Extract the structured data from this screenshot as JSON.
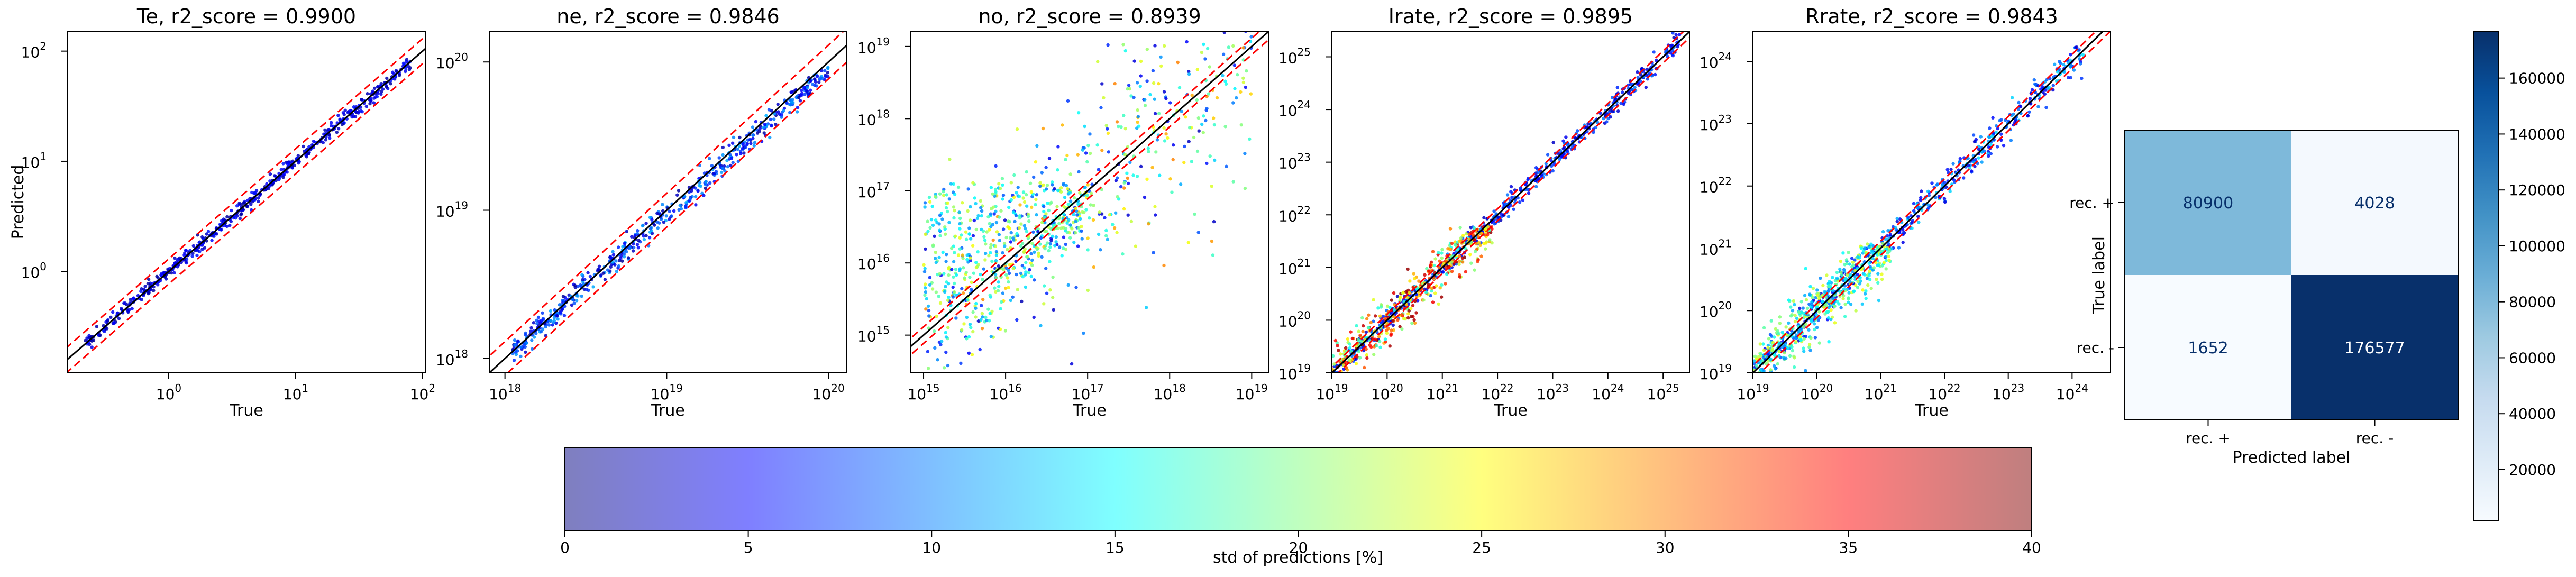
{
  "chart_data": [
    {
      "type": "scatter",
      "title": "Te, r2_score = 0.9900",
      "xlabel": "True",
      "ylabel": "Predicted",
      "log_x": true,
      "log_y": true,
      "xlim": [
        0.16,
        105
      ],
      "ylim": [
        0.12,
        150
      ],
      "xticks": [
        {
          "v": 1,
          "e": "0"
        },
        {
          "v": 10,
          "e": "1"
        },
        {
          "v": 100,
          "e": "2"
        }
      ],
      "yticks": [
        {
          "v": 1,
          "e": "0"
        },
        {
          "v": 10,
          "e": "1"
        },
        {
          "v": 100,
          "e": "2"
        }
      ],
      "identity_line": "y = x (black)",
      "bounds_lines": "red dashed",
      "bound_factor": 1.3,
      "scatter_trend": {
        "x": [
          0.22,
          80
        ],
        "y": [
          0.22,
          80
        ],
        "spread": 0.03,
        "std_range": [
          1,
          6
        ]
      }
    },
    {
      "type": "scatter",
      "title": "ne, r2_score = 0.9846",
      "xlabel": "True",
      "ylabel": "",
      "log_x": true,
      "log_y": true,
      "xlim": [
        8e+17,
        1.3e+20
      ],
      "ylim": [
        8e+17,
        1.6e+20
      ],
      "xticks": [
        {
          "v": 1e+18,
          "e": "18"
        },
        {
          "v": 1e+19,
          "e": "19"
        },
        {
          "v": 1e+20,
          "e": "20"
        }
      ],
      "yticks": [
        {
          "v": 1e+18,
          "e": "18"
        },
        {
          "v": 1e+19,
          "e": "19"
        },
        {
          "v": 1e+20,
          "e": "20"
        }
      ],
      "identity_line": "y = x (black)",
      "bounds_lines": "red dashed",
      "bound_factor": 1.3,
      "scatter_trend": {
        "x": [
          1.1e+18,
          1e+20
        ],
        "y": [
          1.1e+18,
          9e+19
        ],
        "spread": 0.04,
        "std_range": [
          1,
          12
        ]
      }
    },
    {
      "type": "scatter",
      "title": "no, r2_score = 0.8939",
      "xlabel": "True",
      "ylabel": "",
      "log_x": true,
      "log_y": true,
      "xlim": [
        700000000000000.0,
        1.6e+19
      ],
      "ylim": [
        300000000000000.0,
        1.6e+19
      ],
      "xticks": [
        {
          "v": 1000000000000000.0,
          "e": "15"
        },
        {
          "v": 1e+16,
          "e": "16"
        },
        {
          "v": 1e+17,
          "e": "17"
        },
        {
          "v": 1e+18,
          "e": "18"
        },
        {
          "v": 1e+19,
          "e": "19"
        }
      ],
      "yticks": [
        {
          "v": 1000000000000000.0,
          "e": "15"
        },
        {
          "v": 1e+16,
          "e": "16"
        },
        {
          "v": 1e+17,
          "e": "17"
        },
        {
          "v": 1e+18,
          "e": "18"
        },
        {
          "v": 1e+19,
          "e": "19"
        }
      ],
      "identity_line": "y = x (black)",
      "bounds_lines": "red dashed",
      "bound_factor": 1.3,
      "scatter_trend": {
        "x": [
          1000000000000000.0,
          1e+19
        ],
        "y": [
          1000000000000000.0,
          1e+19
        ],
        "spread": 0.5,
        "std_range": [
          2,
          30
        ]
      },
      "scatter_cloud": {
        "x": [
          1000000000000000.0,
          1e+17
        ],
        "y": [
          1000000000000000.0,
          1.3e+17
        ],
        "std_range": [
          8,
          25
        ]
      }
    },
    {
      "type": "scatter",
      "title": "Irate, r2_score = 0.9895",
      "xlabel": "True",
      "ylabel": "",
      "log_x": true,
      "log_y": true,
      "xlim": [
        1e+19,
        3e+25
      ],
      "ylim": [
        1e+19,
        3e+25
      ],
      "xticks": [
        {
          "v": 1e+19,
          "e": "19"
        },
        {
          "v": 1e+20,
          "e": "20"
        },
        {
          "v": 1e+21,
          "e": "21"
        },
        {
          "v": 1e+22,
          "e": "22"
        },
        {
          "v": 1e+23,
          "e": "23"
        },
        {
          "v": 1e+24,
          "e": "24"
        },
        {
          "v": 1e+25,
          "e": "25"
        }
      ],
      "yticks": [
        {
          "v": 1e+19,
          "e": "19"
        },
        {
          "v": 1e+20,
          "e": "20"
        },
        {
          "v": 1e+21,
          "e": "21"
        },
        {
          "v": 1e+22,
          "e": "22"
        },
        {
          "v": 1e+23,
          "e": "23"
        },
        {
          "v": 1e+24,
          "e": "24"
        },
        {
          "v": 1e+25,
          "e": "25"
        }
      ],
      "identity_line": "y = x (black)",
      "bounds_lines": "red dashed",
      "bound_factor": 1.3,
      "scatter_trend": {
        "x": [
          1e+19,
          2e+25
        ],
        "y": [
          1e+19,
          2e+25
        ],
        "spread": 0.1,
        "std_range": [
          2,
          10
        ]
      },
      "scatter_cloud": {
        "x": [
          1e+19,
          8e+21
        ],
        "y": [
          1e+19,
          6e+21
        ],
        "std_range": [
          15,
          40
        ]
      }
    },
    {
      "type": "scatter",
      "title": "Rrate, r2_score = 0.9843",
      "xlabel": "True",
      "ylabel": "",
      "log_x": true,
      "log_y": true,
      "xlim": [
        1e+19,
        4e+24
      ],
      "ylim": [
        1e+19,
        3e+24
      ],
      "xticks": [
        {
          "v": 1e+19,
          "e": "19"
        },
        {
          "v": 1e+20,
          "e": "20"
        },
        {
          "v": 1e+21,
          "e": "21"
        },
        {
          "v": 1e+22,
          "e": "22"
        },
        {
          "v": 1e+23,
          "e": "23"
        },
        {
          "v": 1e+24,
          "e": "24"
        }
      ],
      "yticks": [
        {
          "v": 1e+19,
          "e": "19"
        },
        {
          "v": 1e+20,
          "e": "20"
        },
        {
          "v": 1e+21,
          "e": "21"
        },
        {
          "v": 1e+22,
          "e": "22"
        },
        {
          "v": 1e+23,
          "e": "23"
        },
        {
          "v": 1e+24,
          "e": "24"
        }
      ],
      "identity_line": "y = x (black)",
      "bounds_lines": "red dashed",
      "bound_factor": 1.3,
      "scatter_trend": {
        "x": [
          1e+19,
          1.5e+24
        ],
        "y": [
          1e+19,
          1.5e+24
        ],
        "spread": 0.12,
        "std_range": [
          3,
          14
        ]
      },
      "scatter_cloud": {
        "x": [
          1e+19,
          1.5e+21
        ],
        "y": [
          1e+19,
          1.2e+21
        ],
        "std_range": [
          10,
          25
        ]
      }
    },
    {
      "type": "heatmap",
      "subtype": "confusion_matrix",
      "xlabel": "Predicted label",
      "ylabel": "True label",
      "x_categories": [
        "rec. +",
        "rec. -"
      ],
      "y_categories": [
        "rec. +",
        "rec. -"
      ],
      "values": [
        [
          80900,
          4028
        ],
        [
          1652,
          176577
        ]
      ],
      "colormap": "Blues",
      "colorbar_range": [
        1652,
        176577
      ],
      "colorbar_ticks": [
        "20000",
        "40000",
        "60000",
        "80000",
        "100000",
        "120000",
        "140000",
        "160000"
      ]
    },
    {
      "type": "colorbar",
      "colormap": "jet",
      "alpha": 0.5,
      "label": "std of predictions [%]",
      "range": [
        0,
        40
      ],
      "ticks": [
        "0",
        "5",
        "10",
        "15",
        "20",
        "25",
        "30",
        "35",
        "40"
      ]
    }
  ],
  "colors": {
    "identity_line": "#000000",
    "bound_line": "#ff0000",
    "axes": "#000000",
    "background": "#ffffff",
    "cm_text_light": "#ffffff",
    "cm_text_dark": "#08306b"
  }
}
